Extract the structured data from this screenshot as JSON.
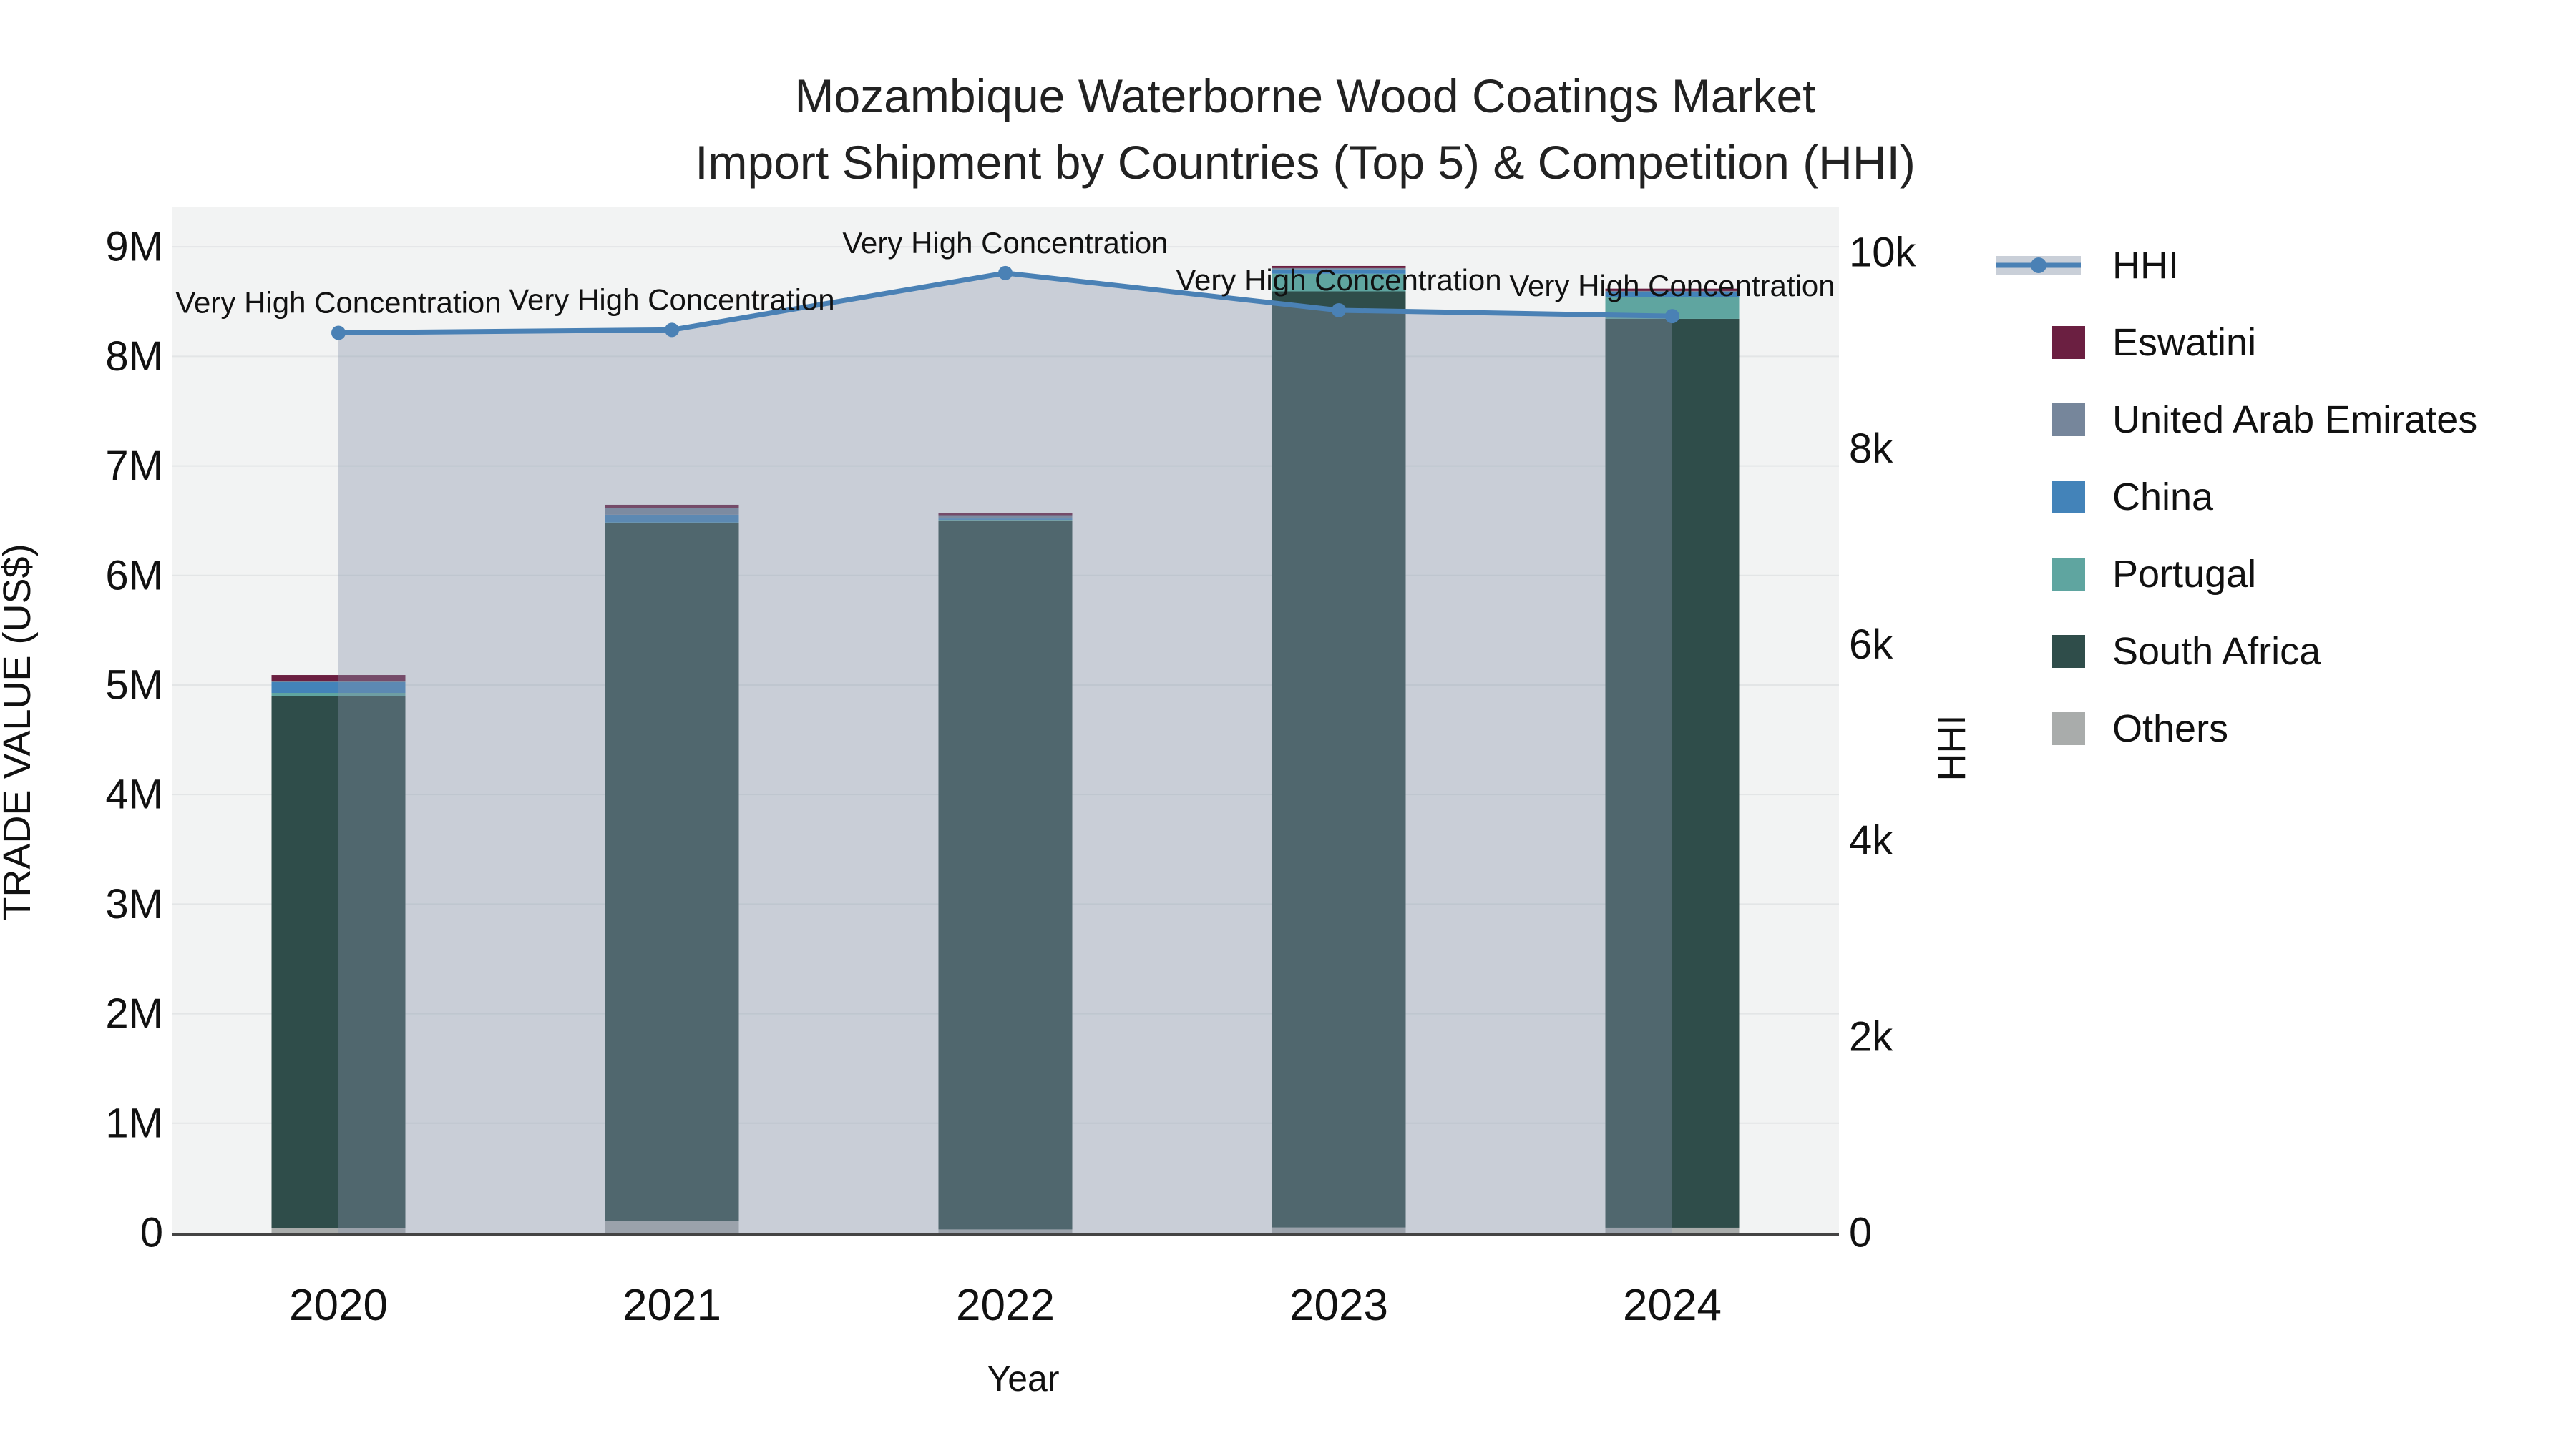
{
  "title": {
    "line1": "Mozambique Waterborne Wood Coatings Market",
    "line2": "Import Shipment by Countries (Top 5) & Competition (HHI)"
  },
  "chart_data": {
    "type": "combo-stacked-bar-line",
    "categories": [
      "2020",
      "2021",
      "2022",
      "2023",
      "2024"
    ],
    "xlabel": "Year",
    "ylabel_left": "TRADE VALUE (US$)",
    "ylabel_right": "HHI",
    "ylim_left": [
      0,
      9360000
    ],
    "ylim_right": [
      0,
      10460
    ],
    "grid": "horizontal",
    "legend_position": "right",
    "yticks_left": [
      {
        "v": 0,
        "label": "0"
      },
      {
        "v": 1000000,
        "label": "1M"
      },
      {
        "v": 2000000,
        "label": "2M"
      },
      {
        "v": 3000000,
        "label": "3M"
      },
      {
        "v": 4000000,
        "label": "4M"
      },
      {
        "v": 5000000,
        "label": "5M"
      },
      {
        "v": 6000000,
        "label": "6M"
      },
      {
        "v": 7000000,
        "label": "7M"
      },
      {
        "v": 8000000,
        "label": "8M"
      },
      {
        "v": 9000000,
        "label": "9M"
      }
    ],
    "yticks_right": [
      {
        "v": 0,
        "label": "0"
      },
      {
        "v": 2000,
        "label": "2k"
      },
      {
        "v": 4000,
        "label": "4k"
      },
      {
        "v": 6000,
        "label": "6k"
      },
      {
        "v": 8000,
        "label": "8k"
      },
      {
        "v": 10000,
        "label": "10k"
      }
    ],
    "bar_series_bottom_to_top": [
      {
        "name": "Others",
        "color": "#a9acab",
        "values": [
          40000,
          108000,
          30000,
          48000,
          46000
        ]
      },
      {
        "name": "South Africa",
        "color": "#2f4d4a",
        "values": [
          4862000,
          6372000,
          6472000,
          8545000,
          8296000
        ]
      },
      {
        "name": "Portugal",
        "color": "#5fa5a0",
        "values": [
          26000,
          4000,
          6000,
          161000,
          196000
        ]
      },
      {
        "name": "China",
        "color": "#4383b9",
        "values": [
          98000,
          70000,
          12000,
          40000,
          46000
        ]
      },
      {
        "name": "United Arab Emirates",
        "color": "#76869b",
        "values": [
          13000,
          61000,
          30000,
          12000,
          13000
        ]
      },
      {
        "name": "Eswatini",
        "color": "#6b1f41",
        "values": [
          52000,
          30000,
          20000,
          19000,
          21000
        ]
      }
    ],
    "line_series": {
      "name": "HHI",
      "axis": "right",
      "color": "#4a81b5",
      "area_fill": "rgba(133,147,172,0.38)",
      "values": [
        9180,
        9210,
        9790,
        9410,
        9350
      ]
    },
    "annotations": [
      {
        "category": "2020",
        "text": "Very High Concentration"
      },
      {
        "category": "2021",
        "text": "Very High Concentration"
      },
      {
        "category": "2022",
        "text": "Very High Concentration"
      },
      {
        "category": "2023",
        "text": "Very High Concentration"
      },
      {
        "category": "2024",
        "text": "Very High Concentration"
      }
    ]
  },
  "legend": {
    "items": [
      {
        "label": "HHI",
        "type": "line",
        "color": "#4a81b5",
        "band": "#c9cfd8"
      },
      {
        "label": "Eswatini",
        "type": "square",
        "color": "#6b1f41"
      },
      {
        "label": "United Arab Emirates",
        "type": "square",
        "color": "#76869b"
      },
      {
        "label": "China",
        "type": "square",
        "color": "#4383b9"
      },
      {
        "label": "Portugal",
        "type": "square",
        "color": "#5fa5a0"
      },
      {
        "label": "South Africa",
        "type": "square",
        "color": "#2f4d4a"
      },
      {
        "label": "Others",
        "type": "square",
        "color": "#a9acab"
      }
    ]
  },
  "style": {
    "plot_bg": "#f2f3f3",
    "gridline": "#e3e5e6",
    "axis_line": "#444444",
    "text_color": "#111111"
  }
}
